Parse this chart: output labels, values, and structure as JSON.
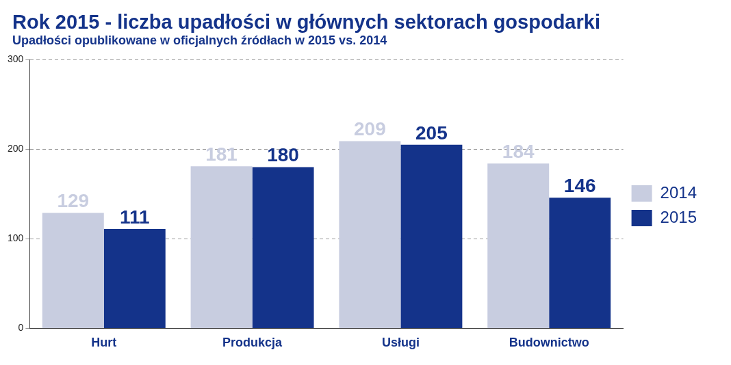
{
  "chart_data": {
    "type": "bar",
    "title": "Rok 2015 - liczba upadłości w głównych sektorach gospodarki",
    "subtitle": "Upadłości opublikowane w oficjalnych źródłach w 2015 vs. 2014",
    "categories": [
      "Hurt",
      "Produkcja",
      "Usługi",
      "Budownictwo"
    ],
    "series": [
      {
        "name": "2014",
        "color": "#c8cde0",
        "values": [
          129,
          181,
          209,
          184
        ]
      },
      {
        "name": "2015",
        "color": "#14338a",
        "values": [
          111,
          180,
          205,
          146
        ]
      }
    ],
    "ylim": [
      0,
      300
    ],
    "yticks": [
      0,
      100,
      200,
      300
    ],
    "grid": "y",
    "legend": "right",
    "data_labels": true
  }
}
